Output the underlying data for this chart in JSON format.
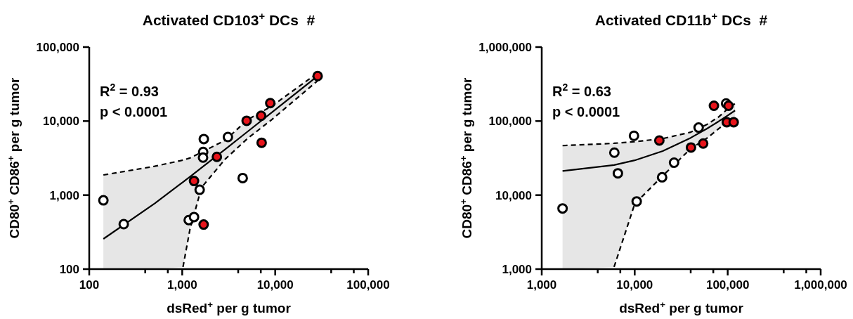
{
  "chart_data": [
    {
      "type": "scatter",
      "title": "Activated CD103$^{+}$ DCs  #",
      "xlabel": "dsRed$^{+}$ per g tumor",
      "ylabel": "CD80$^{+}$ CD86$^{+}$ per g tumor",
      "log": "xy",
      "marker": "circle",
      "annotations": [
        "R$^{2}$ = 0.93",
        "p < 0.0001"
      ],
      "xlim": [
        100,
        100000
      ],
      "ylim": [
        100,
        100000
      ],
      "xticks": [
        100,
        {
          "value": 400,
          "label": null
        },
        {
          "value": 700,
          "label": null
        },
        {
          "value": 1000,
          "label": "1,000"
        },
        {
          "value": 4000,
          "label": null
        },
        {
          "value": 7000,
          "label": null
        },
        {
          "value": 10000,
          "label": "10,000"
        },
        {
          "value": 40000,
          "label": null
        },
        {
          "value": 70000,
          "label": null
        },
        {
          "value": 100000,
          "label": "100,000"
        }
      ],
      "yticks": [
        100,
        {
          "value": 1000,
          "label": "1,000"
        },
        {
          "value": 10000,
          "label": "10,000"
        },
        {
          "value": 100000,
          "label": "100,000"
        }
      ],
      "series": [
        {
          "type": "line",
          "color": "#000000",
          "line_style": "solid",
          "x": [
            142,
            505,
            1020,
            1210,
            1615,
            2890,
            5080,
            9220,
            28600
          ],
          "values": [
            256,
            771,
            1501,
            1771,
            2345,
            4153,
            7258,
            13129,
            40610
          ],
          "lower": [
            100,
            100,
            107,
            343,
            1270,
            3050,
            5870,
            10500,
            35100
          ],
          "upper": [
            1870,
            2450,
            2970,
            3170,
            3790,
            5500,
            10500,
            16000,
            44600
          ],
          "marker": "none"
        },
        {
          "type": "line",
          "color": "#000000",
          "line_style": "dashed",
          "marker": "none",
          "x": [
            142,
            505,
            1020,
            1210,
            1615,
            2890,
            5080,
            9220,
            28600
          ],
          "values": [
            1870,
            2450,
            2970,
            3170,
            3790,
            5500,
            10500,
            16000,
            44600
          ]
        },
        {
          "type": "line",
          "color": "#000000",
          "line_style": "dashed",
          "marker": "none",
          "x": [
            1020,
            1210,
            1615,
            2890,
            5080,
            9220,
            28600
          ],
          "values": [
            107,
            343,
            1270,
            3050,
            5870,
            10500,
            35100
          ]
        },
        {
          "type": "scatter",
          "color": "#ffffff",
          "x": [
            142,
            235,
            1175,
            1340,
            1540,
            1707,
            1680,
            1675,
            3100,
            4470
          ],
          "values": [
            850,
            405,
            460,
            505,
            1180,
            5720,
            3830,
            3210,
            6100,
            1700
          ]
        },
        {
          "type": "scatter",
          "color": "#e8141b",
          "x": [
            1340,
            1700,
            2360,
            4930,
            7060,
            8850,
            7150,
            28600
          ],
          "values": [
            1550,
            400,
            3290,
            10100,
            11800,
            17500,
            5100,
            40600
          ]
        }
      ]
    },
    {
      "type": "scatter",
      "title": "Activated CD11b$^{+}$ DCs  #",
      "xlabel": "dsRed$^{+}$ per g tumor",
      "ylabel": "CD80$^{+}$ CD86$^{+}$ per g tumor",
      "log": "xy",
      "marker": "circle",
      "annotations": [
        "R$^{2}$ = 0.63",
        "p < 0.0001"
      ],
      "xlim": [
        1000,
        1000000
      ],
      "ylim": [
        1000,
        1000000
      ],
      "xticks": [
        {
          "value": 1000,
          "label": "1,000"
        },
        {
          "value": 4000,
          "label": null
        },
        {
          "value": 7000,
          "label": null
        },
        {
          "value": 10000,
          "label": "10,000"
        },
        {
          "value": 40000,
          "label": null
        },
        {
          "value": 70000,
          "label": null
        },
        {
          "value": 100000,
          "label": "100,000"
        },
        {
          "value": 400000,
          "label": null
        },
        {
          "value": 700000,
          "label": null
        },
        {
          "value": 1000000,
          "label": "1,000,000"
        }
      ],
      "yticks": [
        {
          "value": 1000,
          "label": "1,000"
        },
        {
          "value": 10000,
          "label": "10,000"
        },
        {
          "value": 100000,
          "label": "100,000"
        },
        {
          "value": 1000000,
          "label": "1,000,000"
        }
      ],
      "series": [
        {
          "type": "line",
          "color": "#000000",
          "line_style": "solid",
          "x": [
            1675,
            6000,
            10000,
            20000,
            40000,
            60000,
            80000,
            100000,
            120000
          ],
          "values": [
            21200,
            25500,
            29500,
            39400,
            59400,
            79300,
            99200,
            119100,
            139000
          ],
          "lower": [
            1000,
            1070,
            7600,
            18200,
            42400,
            58900,
            78900,
            97800,
            112000
          ],
          "upper": [
            46600,
            50100,
            52700,
            58000,
            70800,
            90200,
            114000,
            146000,
            173000
          ],
          "marker": "none"
        },
        {
          "type": "line",
          "color": "#000000",
          "line_style": "dashed",
          "marker": "none",
          "x": [
            1675,
            6000,
            10000,
            20000,
            40000,
            60000,
            80000,
            100000,
            120000
          ],
          "values": [
            46600,
            50100,
            52700,
            58000,
            70800,
            90200,
            114000,
            146000,
            173000
          ]
        },
        {
          "type": "line",
          "color": "#000000",
          "line_style": "dashed",
          "marker": "none",
          "x": [
            6000,
            10000,
            20000,
            40000,
            60000,
            80000,
            100000,
            120000
          ],
          "values": [
            1070,
            7600,
            18200,
            42400,
            58900,
            78900,
            97800,
            112000
          ]
        },
        {
          "type": "scatter",
          "color": "#ffffff",
          "x": [
            1675,
            6040,
            6590,
            9820,
            10500,
            19700,
            26500,
            48700,
            96100
          ],
          "values": [
            6600,
            37500,
            19700,
            63300,
            8220,
            17400,
            27400,
            81700,
            173000
          ]
        },
        {
          "type": "scatter",
          "color": "#e8141b",
          "x": [
            18400,
            40300,
            54500,
            71100,
            102000,
            97800,
            116000
          ],
          "values": [
            54700,
            44000,
            49800,
            161000,
            161000,
            96600,
            96600
          ]
        }
      ]
    }
  ]
}
